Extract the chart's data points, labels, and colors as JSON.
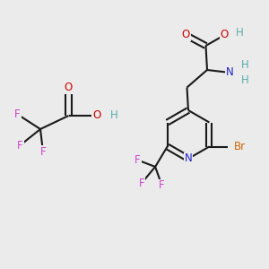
{
  "bg_color": "#ebebeb",
  "bond_color": "#1a1a1a",
  "bond_width": 1.5,
  "font_size_atom": 8.5,
  "colors": {
    "C": "#1a1a1a",
    "H": "#5aacac",
    "O": "#cc0000",
    "N": "#2222cc",
    "F": "#cc44cc",
    "Br": "#cc6600",
    "bond": "#1a1a1a"
  },
  "figsize": [
    3.0,
    3.0
  ],
  "dpi": 100,
  "xlim": [
    0,
    10
  ],
  "ylim": [
    0,
    10
  ]
}
